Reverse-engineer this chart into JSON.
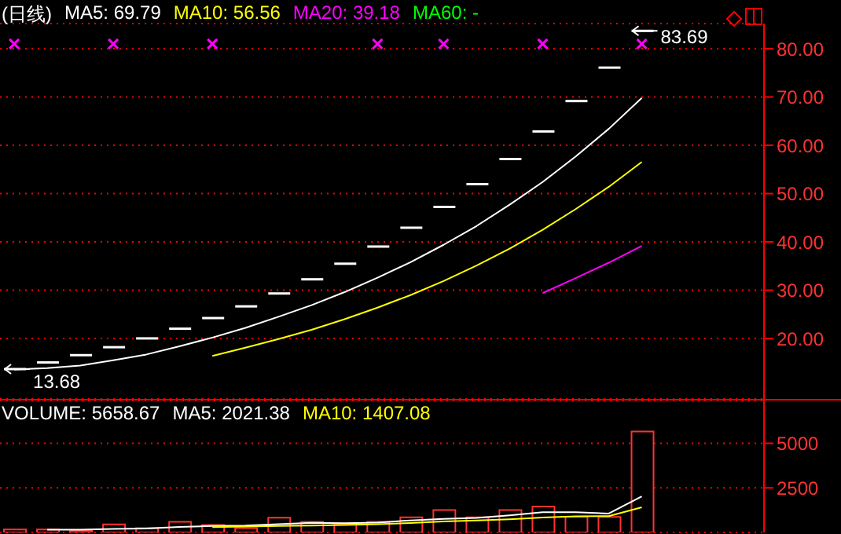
{
  "chart_data": [
    {
      "type": "candlestick",
      "title": "(日线)",
      "tick_labels": "y",
      "grid": "y",
      "color": "#ffffff",
      "categories": [
        null,
        null,
        null,
        null,
        null,
        null,
        null,
        null,
        null,
        null,
        null,
        null,
        null,
        null,
        null,
        null,
        null,
        null,
        null,
        null
      ],
      "ohlc": [
        [
          13.68,
          13.68,
          13.68,
          13.68
        ],
        [
          15.05,
          15.05,
          15.05,
          15.05
        ],
        [
          16.56,
          16.56,
          16.56,
          16.56
        ],
        [
          18.21,
          18.21,
          18.21,
          18.21
        ],
        [
          20.03,
          20.03,
          20.03,
          20.03
        ],
        [
          22.04,
          22.04,
          22.04,
          22.04
        ],
        [
          24.24,
          24.24,
          24.24,
          24.24
        ],
        [
          26.66,
          26.66,
          26.66,
          26.66
        ],
        [
          29.33,
          29.33,
          29.33,
          29.33
        ],
        [
          32.26,
          32.26,
          32.26,
          32.26
        ],
        [
          35.49,
          35.49,
          35.49,
          35.49
        ],
        [
          39.04,
          39.04,
          39.04,
          39.04
        ],
        [
          42.94,
          42.94,
          42.94,
          42.94
        ],
        [
          47.24,
          47.24,
          47.24,
          47.24
        ],
        [
          51.96,
          51.96,
          51.96,
          51.96
        ],
        [
          57.16,
          57.16,
          57.16,
          57.16
        ],
        [
          62.87,
          62.87,
          62.87,
          62.87
        ],
        [
          69.16,
          69.16,
          69.16,
          69.16
        ],
        [
          76.08,
          76.08,
          76.08,
          76.08
        ],
        [
          83.69,
          83.69,
          83.69,
          83.69
        ]
      ],
      "series": [
        {
          "name": "MA5: 69.79",
          "type": "line",
          "color": "#ffffff",
          "values": [
            13.6,
            13.9,
            14.4,
            15.5,
            16.7,
            18.4,
            20.2,
            22.2,
            24.5,
            26.9,
            29.6,
            32.6,
            35.8,
            39.4,
            43.3,
            47.7,
            52.4,
            57.7,
            63.4,
            69.79
          ]
        },
        {
          "name": "MA10: 56.56",
          "type": "line",
          "color": "#ffff00",
          "values": [
            null,
            null,
            null,
            null,
            null,
            null,
            16.4,
            18.1,
            19.9,
            21.8,
            24.0,
            26.4,
            29.0,
            31.9,
            35.1,
            38.6,
            42.5,
            46.8,
            51.4,
            56.56
          ]
        },
        {
          "name": "MA20: 39.18",
          "type": "line",
          "color": "#ff00ff",
          "values": [
            null,
            null,
            null,
            null,
            null,
            null,
            null,
            null,
            null,
            null,
            null,
            null,
            null,
            null,
            null,
            null,
            29.4,
            32.5,
            35.7,
            39.18
          ]
        },
        {
          "name": "MA60: -",
          "type": "line",
          "color": "#00ff00",
          "values": [
            null,
            null,
            null,
            null,
            null,
            null,
            null,
            null,
            null,
            null,
            null,
            null,
            null,
            null,
            null,
            null,
            null,
            null,
            null,
            null
          ]
        },
        {
          "type": "scatter",
          "marker": "cross",
          "color": "#ff00ff",
          "values": [
            81,
            null,
            null,
            81,
            null,
            null,
            81,
            null,
            null,
            null,
            null,
            81,
            null,
            81,
            null,
            null,
            81,
            null,
            null,
            81
          ]
        }
      ],
      "ylim": [
        7.5,
        85.2
      ],
      "yticks": [
        {
          "value": 20,
          "label": "20.00"
        },
        {
          "value": 30,
          "label": "30.00"
        },
        {
          "value": 40,
          "label": "40.00"
        },
        {
          "value": 50,
          "label": "50.00"
        },
        {
          "value": 60,
          "label": "60.00"
        },
        {
          "value": 70,
          "label": "70.00"
        },
        {
          "value": 80,
          "label": "80.00"
        }
      ],
      "annotations": [
        "83.69",
        "13.68"
      ]
    },
    {
      "type": "bar",
      "title": "VOLUME: 5658.67",
      "tick_labels": "y",
      "grid": "y",
      "categories": [
        null,
        null,
        null,
        null,
        null,
        null,
        null,
        null,
        null,
        null,
        null,
        null,
        null,
        null,
        null,
        null,
        null,
        null,
        null,
        null
      ],
      "series": [
        {
          "type": "bar",
          "color": "#ff3232",
          "values": [
            160,
            160,
            100,
            450,
            240,
            600,
            420,
            240,
            830,
            600,
            500,
            600,
            850,
            1250,
            850,
            1250,
            1450,
            880,
            870,
            5658.67
          ]
        },
        {
          "name": "MA5: 2021.38",
          "type": "line",
          "color": "#ffffff",
          "values": [
            null,
            150,
            150,
            200,
            222,
            310,
            362,
            390,
            466,
            538,
            518,
            554,
            676,
            760,
            810,
            960,
            1130,
            1136,
            1060,
            2021.38
          ]
        },
        {
          "name": "MA10: 1407.08",
          "type": "line",
          "color": "#ffff00",
          "values": [
            null,
            null,
            null,
            null,
            null,
            null,
            300,
            330,
            360,
            380,
            414,
            458,
            533,
            613,
            674,
            739,
            842,
            906,
            910,
            1407.08
          ]
        }
      ],
      "ylim": [
        0,
        7400
      ],
      "yticks": [
        2500,
        5000
      ]
    }
  ]
}
